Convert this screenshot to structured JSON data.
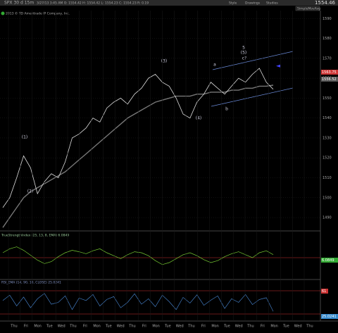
{
  "header": {
    "symbol": "SPX 30 d 15m",
    "ohlc": "3/27/13 3:45 AM O: 1554.42 H: 1554.42 L: 1554.23 C: 1554.23 R: 0.19",
    "copyright": "2013 © TD Ameritrade IP Company, Inc.",
    "last": "1554.46",
    "tools": [
      "Style",
      "Drawings",
      "Studies"
    ],
    "study": "SimpleMovAvg"
  },
  "price_panel": {
    "ylim": [
      1484,
      1594
    ],
    "yticks": [
      1490,
      1500,
      1510,
      1520,
      1530,
      1540,
      1550,
      1560,
      1570,
      1580,
      1590
    ],
    "closes": [
      1495,
      1500,
      1510,
      1521,
      1515,
      1502,
      1508,
      1512,
      1510,
      1518,
      1530,
      1532,
      1535,
      1540,
      1538,
      1545,
      1548,
      1550,
      1547,
      1552,
      1555,
      1560,
      1562,
      1558,
      1556,
      1550,
      1542,
      1540,
      1548,
      1552,
      1558,
      1555,
      1552,
      1556,
      1560,
      1558,
      1562,
      1565,
      1558,
      1554.46
    ],
    "ma": [
      1485,
      1490,
      1495,
      1500,
      1503,
      1505,
      1507,
      1509,
      1511,
      1513,
      1516,
      1519,
      1522,
      1525,
      1528,
      1531,
      1534,
      1537,
      1540,
      1542,
      1544,
      1546,
      1548,
      1549,
      1550,
      1551,
      1551,
      1551,
      1552,
      1552,
      1553,
      1553,
      1553,
      1554,
      1554,
      1555,
      1555,
      1556,
      1556,
      1556.52
    ],
    "labels": [
      "1563.75",
      "1556.52"
    ],
    "waves": [
      "(1)",
      "(2)",
      "(3)",
      "(4)",
      "a",
      "b",
      "c?",
      "(5)",
      "5"
    ]
  },
  "tsi_panel": {
    "title": "TrueStrengthIndex (25, 13, 8, EMA) 6.0849",
    "ylim": [
      -40,
      40
    ],
    "last": "6.0849",
    "values": [
      10,
      18,
      22,
      15,
      5,
      -5,
      -12,
      -8,
      2,
      10,
      15,
      12,
      8,
      14,
      18,
      10,
      4,
      -2,
      6,
      12,
      10,
      4,
      -6,
      -14,
      -10,
      -2,
      6,
      10,
      4,
      -4,
      -10,
      -6,
      2,
      8,
      12,
      6,
      0,
      10,
      14,
      6.0849
    ]
  },
  "rsi_panel": {
    "title": "RSI_EMA (14, 90, 10, CLOSE) 25.0241",
    "ylim": [
      0,
      100
    ],
    "last": "25.0241",
    "upper": "61",
    "values": [
      55,
      70,
      40,
      65,
      35,
      60,
      75,
      45,
      50,
      68,
      30,
      62,
      55,
      72,
      40,
      58,
      66,
      35,
      50,
      74,
      45,
      60,
      38,
      70,
      52,
      30,
      64,
      48,
      71,
      42,
      56,
      68,
      33,
      60,
      50,
      72,
      44,
      58,
      63,
      25.0241
    ]
  },
  "days": [
    "Thu",
    "Fri",
    "Mon",
    "Tue",
    "Wed",
    "Thu",
    "Fri",
    "Mon",
    "Tue",
    "Wed",
    "Thu",
    "Fri",
    "Mon",
    "Tue",
    "Wed",
    "Thu",
    "Fri",
    "Mon",
    "Tue",
    "Wed",
    "Thu",
    "Fri",
    "Mon",
    "Tue",
    "Wed",
    "Thu"
  ]
}
